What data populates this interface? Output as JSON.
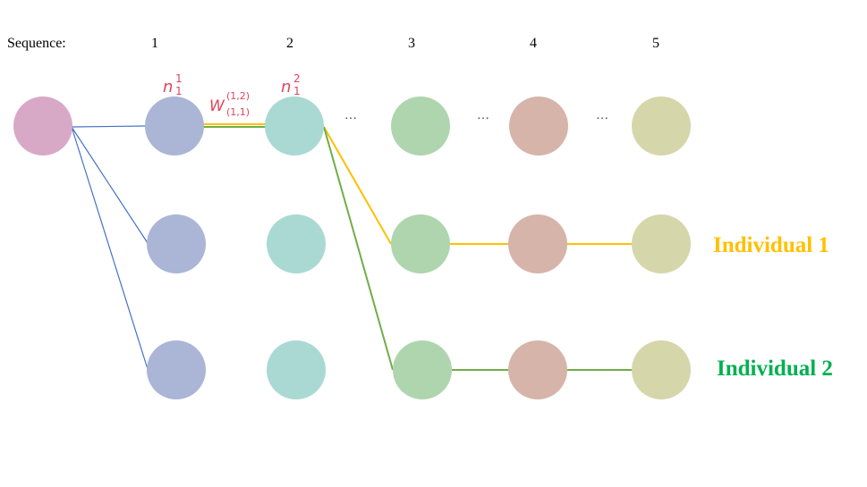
{
  "sequence_label": "Sequence:",
  "sequence_numbers": [
    "1",
    "2",
    "3",
    "4",
    "5"
  ],
  "ellipsis": "…",
  "math_labels": {
    "n_var": "n",
    "n1_super": "1",
    "n1_sub": "1",
    "n2_super": "2",
    "n2_sub": "1",
    "w_var": "W",
    "w_super": "(1,2)",
    "w_sub": "(1,1)"
  },
  "individuals": [
    {
      "label": "Individual 1",
      "color": "#ffc000"
    },
    {
      "label": "Individual 2",
      "color": "#00b050"
    }
  ],
  "colors": {
    "input_node": "#d8a9c6",
    "seq1_node": "#abb5d6",
    "seq2_node": "#a9d9d2",
    "seq3_node": "#afd5af",
    "seq4_node": "#d6b4aa",
    "seq5_node": "#d6d6ab",
    "blue_edge": "#4472c4",
    "yellow_edge": "#ffc000",
    "green_edge": "#70ad47",
    "math_red": "#e0445a"
  }
}
